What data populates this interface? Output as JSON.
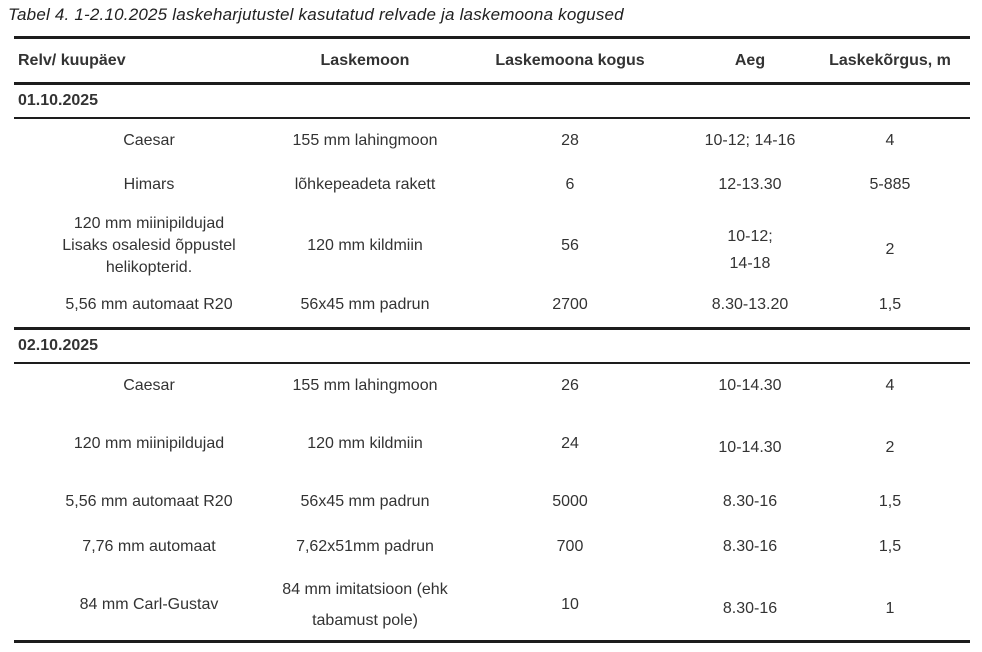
{
  "title": "Tabel 4. 1-2.10.2025 laskeharjutustel kasutatud relvade ja laskemoona kogused",
  "table": {
    "columns": [
      "Relv/ kuupäev",
      "Laskemoon",
      "Laskemoona kogus",
      "Aeg",
      "Laskekõrgus, m"
    ],
    "sections": [
      {
        "date": "01.10.2025",
        "rows": [
          {
            "relv": [
              "Caesar"
            ],
            "laskemoon": [
              "155 mm lahingmoon"
            ],
            "kogus": "28",
            "aeg": [
              "10-12; 14-16"
            ],
            "korgus": "4"
          },
          {
            "relv": [
              "Himars"
            ],
            "laskemoon": [
              "lõhkepeadeta rakett"
            ],
            "kogus": "6",
            "aeg": [
              "12-13.30"
            ],
            "korgus": "5-885"
          },
          {
            "relv": [
              "120 mm miinipildujad",
              "Lisaks osalesid õppustel",
              "helikopterid."
            ],
            "laskemoon": [
              "120 mm kildmiin"
            ],
            "kogus": "56",
            "aeg": [
              "10-12;",
              "14-18"
            ],
            "korgus": "2",
            "time_top": true,
            "time_spread": true
          },
          {
            "relv": [
              "5,56 mm automaat R20"
            ],
            "laskemoon": [
              "56x45 mm padrun"
            ],
            "kogus": "2700",
            "aeg": [
              "8.30-13.20"
            ],
            "korgus": "1,5"
          }
        ]
      },
      {
        "date": "02.10.2025",
        "rows": [
          {
            "relv": [
              "Caesar"
            ],
            "laskemoon": [
              "155 mm lahingmoon"
            ],
            "kogus": "26",
            "aeg": [
              "10-14.30"
            ],
            "korgus": "4"
          },
          {
            "relv": [
              "120 mm miinipildujad"
            ],
            "laskemoon": [
              "120 mm kildmiin"
            ],
            "kogus": "24",
            "aeg": [
              "10-14.30"
            ],
            "korgus": "2",
            "tall": true,
            "time_top": true
          },
          {
            "relv": [
              "5,56 mm automaat R20"
            ],
            "laskemoon": [
              "56x45 mm padrun"
            ],
            "kogus": "5000",
            "aeg": [
              "8.30-16"
            ],
            "korgus": "1,5"
          },
          {
            "relv": [
              "7,76 mm automaat"
            ],
            "laskemoon": [
              "7,62x51mm padrun"
            ],
            "kogus": "700",
            "aeg": [
              "8.30-16"
            ],
            "korgus": "1,5"
          },
          {
            "relv": [
              "84 mm Carl-Gustav"
            ],
            "laskemoon": [
              "84 mm imitatsioon (ehk",
              "tabamust pole)"
            ],
            "kogus": "10",
            "aeg": [
              "8.30-16"
            ],
            "korgus": "1",
            "tall": true,
            "time_top": true,
            "ammo_spread": true
          }
        ]
      }
    ]
  },
  "colors": {
    "text": "#333333",
    "rule": "#1d1d1d",
    "background": "#ffffff"
  }
}
